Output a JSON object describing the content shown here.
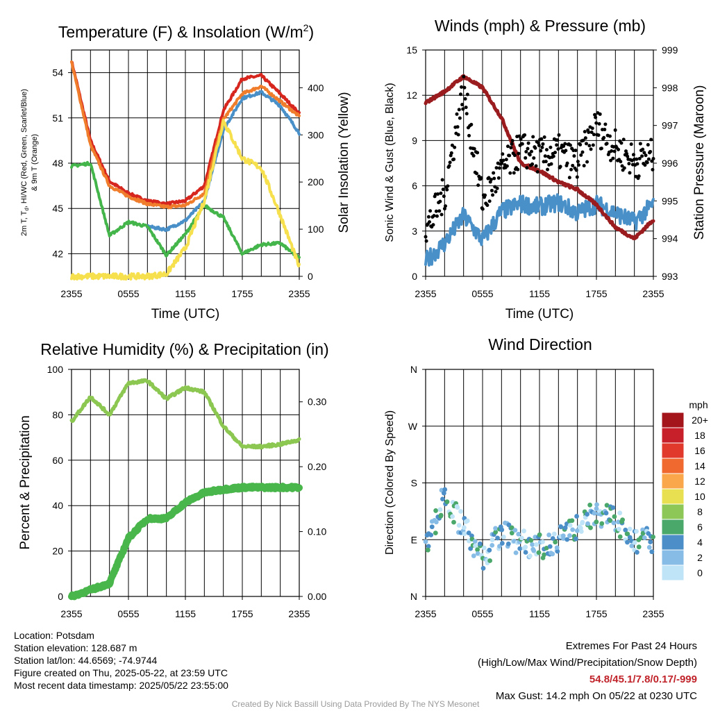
{
  "panels": {
    "temperature": {
      "title_main": "Temperature (F) & Insolation (W/m",
      "title_sup": "2",
      "title_end": ")",
      "ylabel_left_1": "2m T, T",
      "ylabel_left_sub": "d",
      "ylabel_left_2": ", HI/WC (Red, Green, Scarlet/Blue)",
      "ylabel_left_3": "& 9m T (Orange)",
      "ylabel_right": "Solar Insolation (Yellow)",
      "xlabel": "Time (UTC)"
    },
    "winds": {
      "title": "Winds (mph) & Pressure (mb)",
      "ylabel_left": "Sonic Wind & Gust (Blue, Black)",
      "ylabel_right": "Station Pressure (Maroon)",
      "xlabel": "Time (UTC)"
    },
    "humidity": {
      "title": "Relative Humidity (%) & Precipitation (in)",
      "ylabel_left": "Percent & Precipitation"
    },
    "direction": {
      "title": "Wind Direction",
      "ylabel_left": "Direction (Colored By Speed)"
    }
  },
  "colorbar": {
    "title": "mph",
    "labels": [
      "20+",
      "18",
      "16",
      "14",
      "12",
      "10",
      "8",
      "6",
      "4",
      "2",
      "0"
    ],
    "colors": [
      "#a3151b",
      "#c8202a",
      "#e13a2c",
      "#f06a2f",
      "#f9a74a",
      "#e8e050",
      "#8cc757",
      "#4aa86a",
      "#4c8fc8",
      "#87bce6",
      "#bfe3f7"
    ]
  },
  "info_left": [
    "Location: Potsdam",
    "Station elevation: 128.687 m",
    "Station lat/lon: 44.6569; -74.9744",
    "Figure created on Thu, 2025-05-22, at 23:59 UTC",
    "Most recent data timestamp: 2025/05/22 23:55:00"
  ],
  "info_right": {
    "title": "Extremes For Past 24 Hours",
    "subtitle": "(High/Low/Max Wind/Precipitation/Snow Depth)",
    "values": "54.8/45.1/7.8/0.17/-999",
    "gust": "Max Gust: 14.2 mph On 05/22 at 0230 UTC"
  },
  "credit": "Created By Nick Bassill Using Data Provided By The NYS Mesonet",
  "chart_data": [
    {
      "id": "temperature",
      "type": "line",
      "x": [
        "2355",
        "0155",
        "0355",
        "0555",
        "0755",
        "0955",
        "1155",
        "1355",
        "1555",
        "1755",
        "1955",
        "2155",
        "2355"
      ],
      "x_ticks": [
        "2355",
        "0555",
        "1155",
        "1755",
        "2355"
      ],
      "ylim": [
        40.5,
        55.5
      ],
      "y_ticks": [
        42,
        45,
        48,
        51,
        54
      ],
      "y2lim": [
        0,
        480
      ],
      "y2_ticks": [
        0,
        100,
        200,
        300,
        400
      ],
      "grid": true,
      "series": [
        {
          "color": "#d7261e",
          "axis": "left",
          "values": [
            54.8,
            49.5,
            46.8,
            46.0,
            45.5,
            45.3,
            45.5,
            46.5,
            51.5,
            53.6,
            53.8,
            52.6,
            51.3
          ]
        },
        {
          "color": "#f07d2b",
          "axis": "left",
          "values": [
            54.7,
            49.2,
            46.5,
            45.8,
            45.3,
            45.1,
            45.2,
            46.0,
            50.9,
            52.6,
            53.1,
            52.1,
            51.1
          ]
        },
        {
          "color": "#4a90c8",
          "axis": "left",
          "values": [
            null,
            null,
            46.4,
            null,
            43.8,
            43.6,
            44.2,
            45.5,
            50.2,
            52.3,
            52.7,
            51.8,
            50.0
          ]
        },
        {
          "color": "#44b54a",
          "axis": "left",
          "values": [
            47.8,
            48.0,
            43.2,
            44.1,
            43.8,
            41.9,
            43.3,
            45.2,
            44.4,
            42.0,
            42.6,
            42.7,
            41.7
          ]
        },
        {
          "color": "#f6e04e",
          "axis": "right",
          "values": [
            0,
            0,
            0,
            0,
            0,
            5,
            60,
            160,
            330,
            250,
            230,
            130,
            20
          ]
        }
      ]
    },
    {
      "id": "winds",
      "type": "line",
      "x": [
        "2355",
        "0155",
        "0355",
        "0555",
        "0755",
        "0955",
        "1155",
        "1355",
        "1555",
        "1755",
        "1955",
        "2155",
        "2355"
      ],
      "x_ticks": [
        "2355",
        "0555",
        "1155",
        "1755",
        "2355"
      ],
      "ylim": [
        0,
        15
      ],
      "y_ticks": [
        0,
        3,
        6,
        9,
        12,
        15
      ],
      "y2lim": [
        993,
        999
      ],
      "y2_ticks": [
        993,
        994,
        995,
        996,
        997,
        998,
        999
      ],
      "grid": true,
      "series": [
        {
          "color": "#4a90c8",
          "axis": "left",
          "values": [
            1.0,
            2.2,
            4.0,
            2.4,
            4.3,
            4.8,
            4.6,
            4.9,
            4.2,
            4.8,
            4.2,
            3.6,
            4.8
          ]
        },
        {
          "color": "#9b1c1f",
          "axis": "right",
          "values": [
            997.6,
            997.9,
            998.3,
            998.0,
            997.2,
            996.0,
            995.8,
            995.5,
            995.3,
            994.9,
            994.3,
            994.0,
            994.5
          ]
        },
        {
          "color": "#000000",
          "axis": "left",
          "type": "scatter",
          "values": [
            3.0,
            5.5,
            12.4,
            5.0,
            7.0,
            8.4,
            8.0,
            8.2,
            7.4,
            10.0,
            8.5,
            7.6,
            8.0
          ]
        }
      ]
    },
    {
      "id": "humidity",
      "type": "line",
      "x": [
        "2355",
        "0155",
        "0355",
        "0555",
        "0755",
        "0955",
        "1155",
        "1355",
        "1555",
        "1755",
        "1955",
        "2155",
        "2355"
      ],
      "x_ticks": [
        "2355",
        "0555",
        "1155",
        "1755",
        "2355"
      ],
      "ylim": [
        0,
        100
      ],
      "y_ticks": [
        0,
        20,
        40,
        60,
        80,
        100
      ],
      "y2lim": [
        0,
        0.35
      ],
      "y2_ticks": [
        "0.00",
        "0.10",
        "0.20",
        "0.30"
      ],
      "grid": true,
      "series": [
        {
          "color": "#8cc751",
          "axis": "left",
          "values": [
            77,
            88,
            80,
            94,
            95,
            87,
            92,
            90,
            75,
            66,
            66,
            67,
            69
          ]
        },
        {
          "color": "#48b64a",
          "axis": "right",
          "values": [
            0.0,
            0.01,
            0.02,
            0.09,
            0.12,
            0.12,
            0.145,
            0.16,
            0.165,
            0.168,
            0.168,
            0.168,
            0.168
          ]
        }
      ]
    },
    {
      "id": "direction",
      "type": "scatter",
      "x": [
        "2355",
        "0155",
        "0355",
        "0555",
        "0755",
        "0955",
        "1155",
        "1355",
        "1555",
        "1755",
        "1955",
        "2155",
        "2355"
      ],
      "x_ticks": [
        "2355",
        "0555",
        "1155",
        "1755",
        "2355"
      ],
      "y_ticks": [
        "N",
        "E",
        "S",
        "W",
        "N"
      ],
      "ylim": [
        0,
        360
      ],
      "grid": true,
      "series": [
        {
          "values": [
            80,
            160,
            110,
            60,
            100,
            85,
            78,
            90,
            110,
            135,
            120,
            85,
            90
          ]
        }
      ]
    }
  ]
}
